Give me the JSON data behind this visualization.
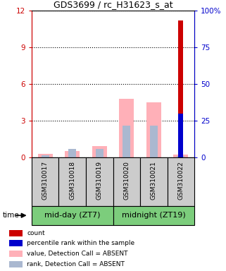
{
  "title": "GDS3699 / rc_H31623_s_at",
  "samples": [
    "GSM310017",
    "GSM310018",
    "GSM310019",
    "GSM310020",
    "GSM310021",
    "GSM310022"
  ],
  "group_labels": [
    "mid-day (ZT7)",
    "midnight (ZT19)"
  ],
  "group_color": "#7ccd7c",
  "value_absent": [
    0.3,
    0.5,
    0.9,
    4.8,
    4.5,
    0.2
  ],
  "rank_absent": [
    0.15,
    0.65,
    0.7,
    2.6,
    2.6,
    0.1
  ],
  "count_value": [
    0,
    0,
    0,
    0,
    0,
    11.2
  ],
  "percentile_value": [
    0,
    0,
    0,
    0,
    0,
    30.0
  ],
  "ylim_left": [
    0,
    12
  ],
  "ylim_right": [
    0,
    100
  ],
  "yticks_left": [
    0,
    3,
    6,
    9,
    12
  ],
  "yticks_right": [
    0,
    25,
    50,
    75,
    100
  ],
  "ytick_labels_left": [
    "0",
    "3",
    "6",
    "9",
    "12"
  ],
  "ytick_labels_right": [
    "0",
    "25",
    "50",
    "75",
    "100%"
  ],
  "color_count": "#cc0000",
  "color_percentile": "#0000cc",
  "color_value_absent": "#ffb0b8",
  "color_rank_absent": "#aab8d0",
  "bar_width": 0.55,
  "rank_bar_width": 0.28,
  "count_bar_width": 0.18,
  "perc_bar_width": 0.18,
  "bg_color": "#cccccc",
  "legend_items": [
    {
      "color": "#cc0000",
      "label": "count"
    },
    {
      "color": "#0000cc",
      "label": "percentile rank within the sample"
    },
    {
      "color": "#ffb0b8",
      "label": "value, Detection Call = ABSENT"
    },
    {
      "color": "#aab8d0",
      "label": "rank, Detection Call = ABSENT"
    }
  ]
}
